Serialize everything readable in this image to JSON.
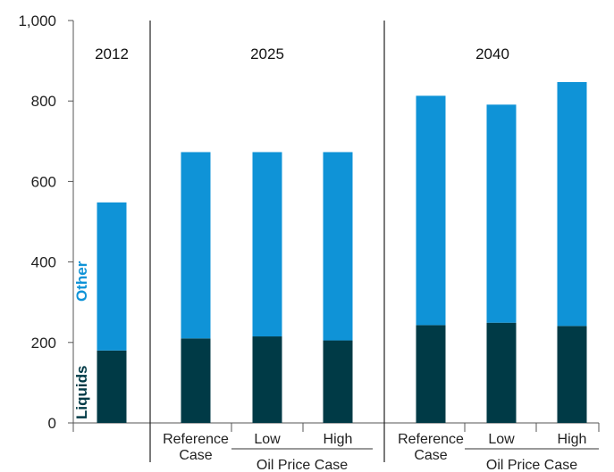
{
  "chart_data": {
    "type": "bar",
    "stacked": true,
    "ylim": [
      0,
      1000
    ],
    "yticks": [
      "0",
      "200",
      "400",
      "600",
      "800",
      "1,000"
    ],
    "series": [
      {
        "name": "Liquids",
        "color": "#003a46",
        "values": [
          180,
          210,
          215,
          205,
          243,
          249,
          241
        ]
      },
      {
        "name": "Other",
        "color": "#0f93d7",
        "values": [
          368,
          463,
          458,
          468,
          570,
          542,
          606
        ]
      }
    ],
    "categories": [
      "2012",
      "Reference Case",
      "Low",
      "High",
      "Reference Case",
      "Low",
      "High"
    ],
    "groups": [
      {
        "year": "2012",
        "bars": [
          {
            "label_lines": []
          }
        ]
      },
      {
        "year": "2025",
        "sub_label": "Oil Price Case",
        "bars": [
          {
            "label_lines": [
              "Reference",
              "Case"
            ]
          },
          {
            "label_lines": [
              "Low"
            ]
          },
          {
            "label_lines": [
              "High"
            ]
          }
        ]
      },
      {
        "year": "2040",
        "sub_label": "Oil Price Case",
        "bars": [
          {
            "label_lines": [
              "Reference",
              "Case"
            ]
          },
          {
            "label_lines": [
              "Low"
            ]
          },
          {
            "label_lines": [
              "High"
            ]
          }
        ]
      }
    ],
    "legend_labels": {
      "liquids": "Liquids",
      "other": "Other"
    }
  }
}
